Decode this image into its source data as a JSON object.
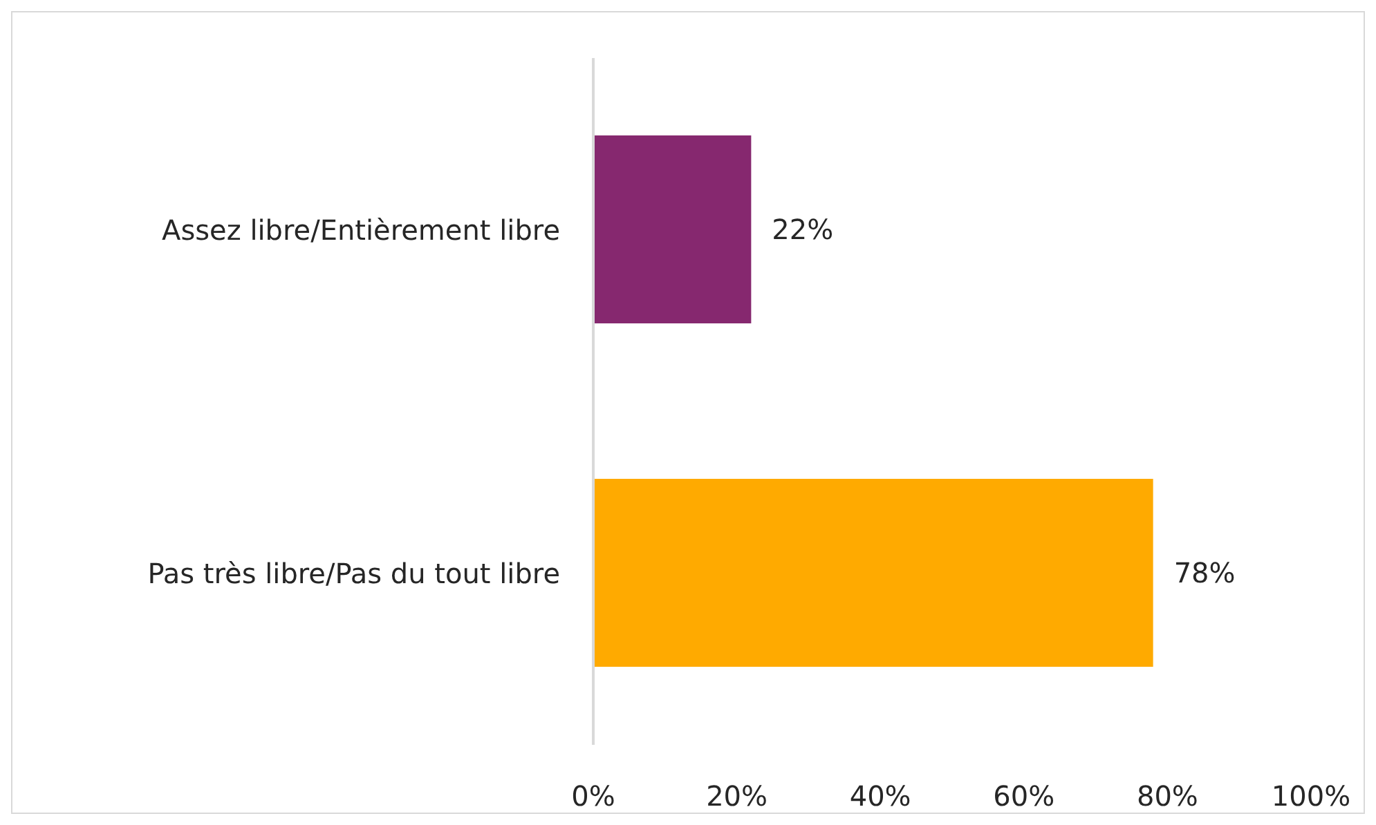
{
  "chart_data": {
    "type": "bar",
    "orientation": "horizontal",
    "categories": [
      "Assez libre/Entièrement libre",
      "Pas très libre/Pas du tout libre"
    ],
    "values": [
      22,
      78
    ],
    "colors": [
      "#86286f",
      "#ffaa00"
    ],
    "value_labels": [
      "22%",
      "78%"
    ],
    "xlim": [
      0,
      100
    ],
    "xticks": [
      {
        "value": 0,
        "label": "0%"
      },
      {
        "value": 20,
        "label": "20%"
      },
      {
        "value": 40,
        "label": "40%"
      },
      {
        "value": 60,
        "label": "60%"
      },
      {
        "value": 80,
        "label": "80%"
      },
      {
        "value": 100,
        "label": "100%"
      }
    ],
    "grid": false,
    "legend": false
  }
}
